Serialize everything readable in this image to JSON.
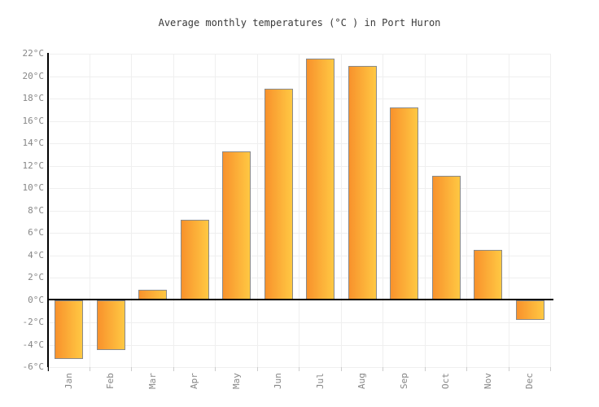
{
  "title": "Average monthly temperatures (°C ) in Port Huron",
  "chart_data": {
    "type": "bar",
    "title": "Average monthly temperatures (°C ) in Port Huron",
    "categories": [
      "Jan",
      "Feb",
      "Mar",
      "Apr",
      "May",
      "Jun",
      "Jul",
      "Aug",
      "Sep",
      "Oct",
      "Nov",
      "Dec"
    ],
    "values": [
      -5.3,
      -4.5,
      0.9,
      7.2,
      13.3,
      18.9,
      21.6,
      20.9,
      17.2,
      11.1,
      4.5,
      -1.8
    ],
    "xlabel": "",
    "ylabel": "°C",
    "ylim": [
      -6,
      22
    ],
    "ytick_step": 2,
    "ytick_labels": [
      "22°C",
      "20°C",
      "18°C",
      "16°C",
      "14°C",
      "12°C",
      "10°C",
      "8°C",
      "6°C",
      "4°C",
      "2°C",
      "0°C",
      "-2°C",
      "-4°C",
      "-6°C"
    ],
    "grid": true,
    "legend_position": "none"
  },
  "colors": {
    "background": "#ffffff",
    "bar_gradient_left": "#f8922c",
    "bar_gradient_right": "#ffc843",
    "bar_border": "#8a8a8a",
    "grid": "#efefef",
    "axis": "#000000",
    "label": "#878787",
    "title": "#3a3a3a"
  }
}
